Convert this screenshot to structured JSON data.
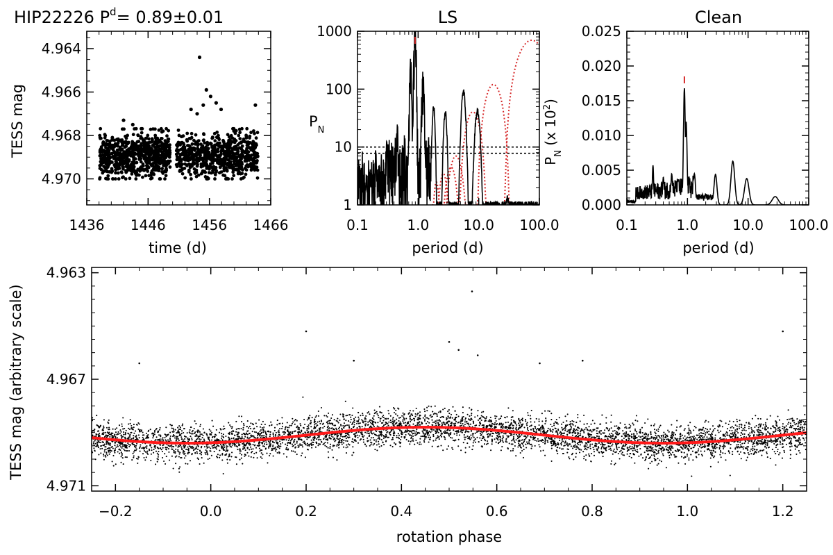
{
  "chart_data": [
    {
      "id": "lightcurve",
      "type": "scatter",
      "title": "HIP22226 P",
      "title_superscript": "d",
      "title_value": "= 0.89±0.01",
      "xlabel": "time (d)",
      "ylabel": "TESS mag",
      "xlim": [
        1436,
        1466
      ],
      "ylim": [
        4.9712,
        4.9632
      ],
      "y_inverted": true,
      "xticks": [
        "1436",
        "1446",
        "1456",
        "1466"
      ],
      "xtick_values": [
        1436,
        1446,
        1456,
        1466
      ],
      "yticks": [
        "4.964",
        "4.966",
        "4.968",
        "4.970"
      ],
      "ytick_values": [
        4.964,
        4.966,
        4.968,
        4.97
      ],
      "point_color": "#000000",
      "segments": [
        {
          "x_range": [
            1438.1,
            1449.6
          ],
          "y_center": 4.9689,
          "spread": 0.0011
        },
        {
          "x_range": [
            1450.6,
            1463.9
          ],
          "y_center": 4.9689,
          "spread": 0.0011
        }
      ],
      "outliers": [
        {
          "x": 1454.4,
          "y": 4.9644
        },
        {
          "x": 1455.5,
          "y": 4.9659
        },
        {
          "x": 1456.2,
          "y": 4.9662
        },
        {
          "x": 1457.1,
          "y": 4.9665
        },
        {
          "x": 1454.0,
          "y": 4.967
        },
        {
          "x": 1453.0,
          "y": 4.9668
        },
        {
          "x": 1455.0,
          "y": 4.9666
        },
        {
          "x": 1457.9,
          "y": 4.9668
        },
        {
          "x": 1442.0,
          "y": 4.9673
        },
        {
          "x": 1443.5,
          "y": 4.9675
        },
        {
          "x": 1463.5,
          "y": 4.9666
        }
      ]
    },
    {
      "id": "ls",
      "type": "line",
      "title": "LS",
      "xlabel": "period (d)",
      "ylabel": "P",
      "ylabel_sub": "N",
      "x_scale": "log",
      "y_scale": "log",
      "xlim": [
        0.1,
        100
      ],
      "ylim": [
        1,
        1000
      ],
      "xticks": [
        "0.1",
        "1.0",
        "10.0",
        "100.0"
      ],
      "xtick_values": [
        0.1,
        1,
        10,
        100
      ],
      "yticks": [
        "1",
        "10",
        "100",
        "1000"
      ],
      "ytick_values": [
        1,
        10,
        100,
        1000
      ],
      "thresholds": [
        10,
        7.8
      ],
      "marker_period": 0.89,
      "peak_color": "#000000",
      "window_color": "#d62728",
      "peaks": [
        {
          "x": 0.89,
          "y": 800
        },
        {
          "x": 1.2,
          "y": 120
        },
        {
          "x": 0.75,
          "y": 200
        },
        {
          "x": 1.8,
          "y": 50
        },
        {
          "x": 2.8,
          "y": 40
        },
        {
          "x": 5.6,
          "y": 90
        },
        {
          "x": 9.5,
          "y": 42
        },
        {
          "x": 30,
          "y": 1.3
        },
        {
          "x": 0.3,
          "y": 12
        },
        {
          "x": 0.45,
          "y": 20
        },
        {
          "x": 0.2,
          "y": 8
        }
      ],
      "window_peaks": [
        {
          "x": 2.0,
          "y": 2.0
        },
        {
          "x": 2.6,
          "y": 3.0
        },
        {
          "x": 3.5,
          "y": 4.0
        },
        {
          "x": 4.2,
          "y": 6.5
        },
        {
          "x": 8.0,
          "y": 40
        },
        {
          "x": 17.5,
          "y": 120
        },
        {
          "x": 75,
          "y": 700
        }
      ]
    },
    {
      "id": "clean",
      "type": "line",
      "title": "Clean",
      "xlabel": "period (d)",
      "ylabel": "P",
      "ylabel_sub": "N",
      "ylabel_suffix": " (x 10",
      "ylabel_sup": "2",
      "ylabel_end": ")",
      "x_scale": "log",
      "xlim": [
        0.1,
        100
      ],
      "ylim": [
        0,
        0.025
      ],
      "xticks": [
        "0.1",
        "1.0",
        "10.0",
        "100.0"
      ],
      "xtick_values": [
        0.1,
        1,
        10,
        100
      ],
      "yticks": [
        "0.000",
        "0.005",
        "0.010",
        "0.015",
        "0.020",
        "0.025"
      ],
      "ytick_values": [
        0,
        0.005,
        0.01,
        0.015,
        0.02,
        0.025
      ],
      "marker_period": 0.89,
      "peaks": [
        {
          "x": 0.89,
          "y": 0.0168
        },
        {
          "x": 0.95,
          "y": 0.012
        },
        {
          "x": 0.27,
          "y": 0.0057
        },
        {
          "x": 0.4,
          "y": 0.004
        },
        {
          "x": 0.55,
          "y": 0.0045
        },
        {
          "x": 0.7,
          "y": 0.0035
        },
        {
          "x": 1.3,
          "y": 0.0045
        },
        {
          "x": 2.9,
          "y": 0.0044
        },
        {
          "x": 5.6,
          "y": 0.0063
        },
        {
          "x": 9.5,
          "y": 0.0038
        },
        {
          "x": 28,
          "y": 0.0012
        }
      ]
    },
    {
      "id": "phased",
      "type": "scatter",
      "xlabel": "rotation phase",
      "ylabel": "TESS mag (arbitrary scale)",
      "xlim": [
        -0.25,
        1.25
      ],
      "ylim": [
        4.9712,
        4.9628
      ],
      "y_inverted": true,
      "xticks": [
        "−0.2",
        "0.0",
        "0.2",
        "0.4",
        "0.6",
        "0.8",
        "1.0",
        "1.2"
      ],
      "xtick_values": [
        -0.2,
        0.0,
        0.2,
        0.4,
        0.6,
        0.8,
        1.0,
        1.2
      ],
      "yticks": [
        "4.963",
        "4.967",
        "4.971"
      ],
      "ytick_values": [
        4.963,
        4.967,
        4.971
      ],
      "fit_mean": 4.9691,
      "fit_amplitude": 0.0003,
      "fit_max_phase": 0.45,
      "fit_color": "#ff1a1a",
      "point_color": "#000000",
      "point_spread": 0.0006,
      "outliers": [
        {
          "x": 0.548,
          "y": 4.9637
        },
        {
          "x": 0.2,
          "y": 4.9652
        },
        {
          "x": 1.2,
          "y": 4.9652
        },
        {
          "x": 0.5,
          "y": 4.9656
        },
        {
          "x": 0.52,
          "y": 4.9659
        },
        {
          "x": -0.15,
          "y": 4.9664
        },
        {
          "x": 0.56,
          "y": 4.9661
        },
        {
          "x": 0.3,
          "y": 4.9663
        },
        {
          "x": 0.69,
          "y": 4.9664
        },
        {
          "x": 0.78,
          "y": 4.9663
        }
      ]
    }
  ]
}
